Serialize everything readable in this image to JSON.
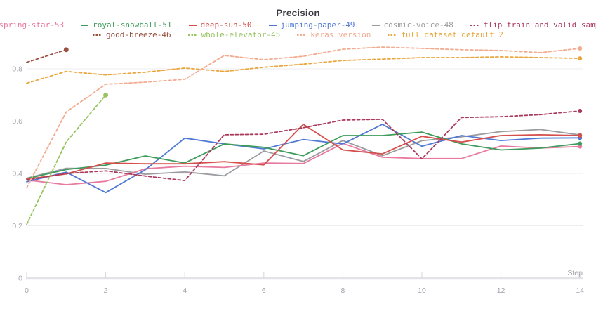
{
  "header": {
    "title": "Precision"
  },
  "axis": {
    "x_label": "Step",
    "x_ticks": [
      "0",
      "2",
      "4",
      "6",
      "8",
      "10",
      "12",
      "14"
    ],
    "y_ticks": [
      "0",
      "0.2",
      "0.4",
      "0.6",
      "0.8"
    ]
  },
  "colors": {
    "grid": "#ededf0",
    "axis_band": "#e2e2e8",
    "tick": "#d6d6dc",
    "tick_label": "#a3a3ad",
    "title": "#3b3b41"
  },
  "chart_data": {
    "type": "line",
    "title": "Precision",
    "xlabel": "Step",
    "ylabel": "",
    "xlim": [
      0,
      14
    ],
    "ylim": [
      0,
      0.95
    ],
    "grid": "horizontal-only",
    "legend_position": "top",
    "x_ticks": [
      0,
      2,
      4,
      6,
      8,
      10,
      12,
      14
    ],
    "y_ticks": [
      0,
      0.2,
      0.4,
      0.6,
      0.8
    ],
    "series": [
      {
        "name": "spring-star-53",
        "color": "#e8799f",
        "style": "solid",
        "x": [
          0,
          1,
          2,
          3,
          4,
          5,
          6,
          7,
          8,
          9,
          10,
          11,
          12,
          13,
          14
        ],
        "values": [
          0.375,
          0.357,
          0.37,
          0.418,
          0.428,
          0.423,
          0.44,
          0.438,
          0.515,
          0.462,
          0.457,
          0.457,
          0.505,
          0.497,
          0.503
        ]
      },
      {
        "name": "royal-snowball-51",
        "color": "#3d9c5b",
        "style": "solid",
        "x": [
          0,
          1,
          2,
          3,
          4,
          5,
          6,
          7,
          8,
          9,
          10,
          11,
          12,
          13,
          14
        ],
        "values": [
          0.38,
          0.415,
          0.432,
          0.467,
          0.44,
          0.513,
          0.5,
          0.468,
          0.545,
          0.545,
          0.558,
          0.513,
          0.49,
          0.497,
          0.514
        ]
      },
      {
        "name": "deep-sun-50",
        "color": "#d5504c",
        "style": "solid",
        "x": [
          0,
          1,
          2,
          3,
          4,
          5,
          6,
          7,
          8,
          9,
          10,
          11,
          12,
          13,
          14
        ],
        "values": [
          0.378,
          0.398,
          0.44,
          0.437,
          0.437,
          0.445,
          0.433,
          0.588,
          0.49,
          0.475,
          0.542,
          0.52,
          0.545,
          0.548,
          0.545
        ]
      },
      {
        "name": "jumping-paper-49",
        "color": "#4f79d5",
        "style": "solid",
        "x": [
          0,
          1,
          2,
          3,
          4,
          5,
          6,
          7,
          8,
          9,
          10,
          11,
          12,
          13,
          14
        ],
        "values": [
          0.368,
          0.405,
          0.327,
          0.414,
          0.535,
          0.513,
          0.494,
          0.53,
          0.513,
          0.588,
          0.504,
          0.545,
          0.526,
          0.535,
          0.536
        ]
      },
      {
        "name": "cosmic-voice-48",
        "color": "#9b9ba0",
        "style": "solid",
        "x": [
          0,
          1,
          2,
          3,
          4,
          5,
          6,
          7,
          8,
          9,
          10,
          11,
          12,
          13,
          14
        ],
        "values": [
          0.382,
          0.42,
          0.419,
          0.397,
          0.406,
          0.391,
          0.486,
          0.446,
          0.526,
          0.468,
          0.525,
          0.54,
          0.56,
          0.568,
          0.547
        ]
      },
      {
        "name": "flip train and valid sample",
        "color": "#aa3a5c",
        "style": "dashed",
        "x": [
          0,
          1,
          2,
          3,
          4,
          5,
          6,
          7,
          8,
          9,
          10,
          11,
          12,
          13,
          14
        ],
        "values": [
          0.375,
          0.4,
          0.41,
          0.39,
          0.373,
          0.548,
          0.55,
          0.575,
          0.604,
          0.607,
          0.456,
          0.614,
          0.617,
          0.625,
          0.639
        ]
      },
      {
        "name": "good-breeze-46",
        "color": "#99503f",
        "style": "dashed",
        "x": [
          0,
          1
        ],
        "values": [
          0.825,
          0.873
        ]
      },
      {
        "name": "whole-elevator-45",
        "color": "#97c361",
        "style": "dashed",
        "x": [
          0,
          1,
          2
        ],
        "values": [
          0.205,
          0.52,
          0.7
        ]
      },
      {
        "name": "keras version",
        "color": "#f3ab90",
        "style": "dashed",
        "x": [
          0,
          1,
          2,
          3,
          4,
          5,
          6,
          7,
          8,
          9,
          10,
          11,
          12,
          13,
          14
        ],
        "values": [
          0.345,
          0.635,
          0.741,
          0.749,
          0.76,
          0.851,
          0.835,
          0.848,
          0.875,
          0.883,
          0.878,
          0.873,
          0.87,
          0.862,
          0.878
        ]
      },
      {
        "name": "full dataset default 2",
        "color": "#eaa63c",
        "style": "dashed",
        "x": [
          0,
          1,
          2,
          3,
          4,
          5,
          6,
          7,
          8,
          9,
          10,
          11,
          12,
          13,
          14
        ],
        "values": [
          0.745,
          0.79,
          0.777,
          0.787,
          0.803,
          0.79,
          0.806,
          0.818,
          0.832,
          0.837,
          0.843,
          0.843,
          0.846,
          0.843,
          0.84
        ]
      }
    ]
  }
}
